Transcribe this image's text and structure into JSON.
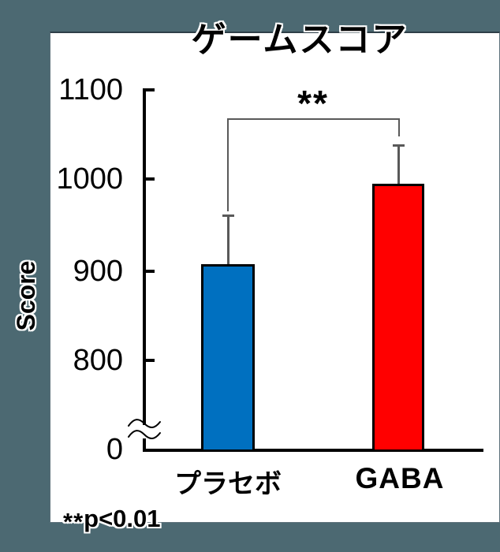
{
  "background_color": "#4C6972",
  "chart_data": {
    "type": "bar",
    "title": "ゲームスコア",
    "ylabel": "Score",
    "xlabel": "",
    "categories": [
      "プラセボ",
      "GABA"
    ],
    "series": [
      {
        "name": "Score",
        "values": [
          908,
          997
        ],
        "error_plus": [
          54,
          43
        ]
      }
    ],
    "bar_colors": [
      "#0070C0",
      "#FF0000"
    ],
    "yticks_top_to_bottom": [
      "1100",
      "1000",
      "900",
      "800",
      "0"
    ],
    "ylim": [
      0,
      1100
    ],
    "axis_break_between": [
      0,
      800
    ],
    "grid": false,
    "legend": "none",
    "significance": {
      "marker": "**",
      "comparison": [
        "プラセボ",
        "GABA"
      ]
    }
  },
  "footnote": {
    "marker": "**",
    "text": "p<0.01"
  }
}
